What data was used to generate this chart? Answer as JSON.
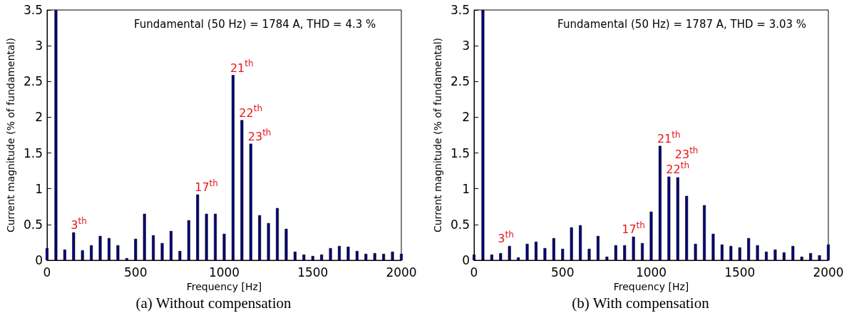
{
  "chart_data": [
    {
      "type": "bar",
      "title": "(a) Without compensation",
      "xlabel": "Frequency [Hz]",
      "ylabel": "Current magnitude (% of fundamental)",
      "color": "#000080",
      "x": [
        0,
        50,
        100,
        150,
        200,
        250,
        300,
        350,
        400,
        450,
        500,
        550,
        600,
        650,
        700,
        750,
        800,
        850,
        900,
        950,
        1000,
        1050,
        1100,
        1150,
        1200,
        1250,
        1300,
        1350,
        1400,
        1450,
        1500,
        1550,
        1600,
        1650,
        1700,
        1750,
        1800,
        1850,
        1900,
        1950,
        2000
      ],
      "values": [
        0.17,
        3.5,
        0.15,
        0.39,
        0.14,
        0.21,
        0.34,
        0.31,
        0.21,
        0.03,
        0.3,
        0.65,
        0.35,
        0.24,
        0.41,
        0.13,
        0.56,
        0.92,
        0.65,
        0.65,
        0.37,
        2.59,
        1.96,
        1.63,
        0.63,
        0.52,
        0.73,
        0.44,
        0.12,
        0.08,
        0.06,
        0.08,
        0.17,
        0.2,
        0.19,
        0.13,
        0.09,
        0.1,
        0.09,
        0.12,
        0.09
      ],
      "xlim": [
        0,
        2000
      ],
      "xticks": [
        0,
        500,
        1000,
        1500,
        2000
      ],
      "ylim": [
        0,
        3.5
      ],
      "yticks": [
        0,
        0.5,
        1,
        1.5,
        2,
        2.5,
        3,
        3.5
      ],
      "annotations": [
        "Fundamental (50 Hz) = 1784 A, THD = 4.3 %",
        {
          "text": "3$^{th}$",
          "x": 150,
          "y": 0.39
        },
        {
          "text": "17$^{th}$",
          "x": 850,
          "y": 0.92
        },
        {
          "text": "21$^{th}$",
          "x": 1050,
          "y": 2.59
        },
        {
          "text": "22$^{th}$",
          "x": 1100,
          "y": 1.96
        },
        {
          "text": "23$^{th}$",
          "x": 1150,
          "y": 1.63
        }
      ]
    },
    {
      "type": "bar",
      "title": "(b) With compensation",
      "xlabel": "Frequency [Hz]",
      "ylabel": "Current magnitude (% of fundamental)",
      "color": "#000080",
      "x": [
        0,
        50,
        100,
        150,
        200,
        250,
        300,
        350,
        400,
        450,
        500,
        550,
        600,
        650,
        700,
        750,
        800,
        850,
        900,
        950,
        1000,
        1050,
        1100,
        1150,
        1200,
        1250,
        1300,
        1350,
        1400,
        1450,
        1500,
        1550,
        1600,
        1650,
        1700,
        1750,
        1800,
        1850,
        1900,
        1950,
        2000
      ],
      "values": [
        0.08,
        3.5,
        0.08,
        0.1,
        0.2,
        0.04,
        0.23,
        0.26,
        0.17,
        0.31,
        0.16,
        0.46,
        0.49,
        0.16,
        0.34,
        0.05,
        0.21,
        0.21,
        0.33,
        0.24,
        0.68,
        1.6,
        1.17,
        1.16,
        0.9,
        0.23,
        0.77,
        0.37,
        0.22,
        0.2,
        0.18,
        0.31,
        0.21,
        0.12,
        0.15,
        0.11,
        0.2,
        0.05,
        0.1,
        0.07,
        0.22
      ],
      "xlim": [
        0,
        2000
      ],
      "xticks": [
        0,
        500,
        1000,
        1500,
        2000
      ],
      "ylim": [
        0,
        3.5
      ],
      "yticks": [
        0,
        0.5,
        1,
        1.5,
        2,
        2.5,
        3,
        3.5
      ],
      "annotations": [
        "Fundamental (50 Hz) = 1787 A, THD = 3.03 %",
        {
          "text": "3$^{th}$",
          "x": 150,
          "y": 0.1
        },
        {
          "text": "17$^{th}$",
          "x": 850,
          "y": 0.21
        },
        {
          "text": "21$^{th}$",
          "x": 1050,
          "y": 1.6
        },
        {
          "text": "22$^{th}$",
          "x": 1100,
          "y": 1.17
        },
        {
          "text": "23$^{th}$",
          "x": 1150,
          "y": 1.16
        }
      ]
    }
  ]
}
